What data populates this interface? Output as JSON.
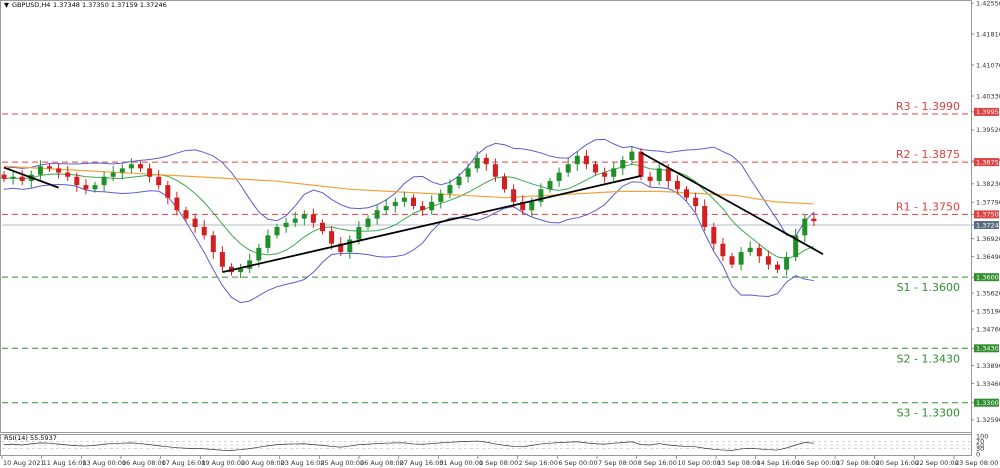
{
  "header": {
    "symbol": "GBPUSD,H4",
    "ohlc": "1.37348 1.37350 1.37159 1.37246"
  },
  "rsi_header": "RSI(14) 55.5937",
  "colors": {
    "bull": "#1f8f2a",
    "bear": "#d31f1f",
    "ma_fast": "#3aa84a",
    "ma_slow": "#f2a33a",
    "bands": "#5c5ccf",
    "resistance": "#e04040",
    "support": "#2f8f2f",
    "trend": "#000000"
  },
  "chart_data": [
    {
      "type": "candlestick",
      "title": "GBPUSD,H4",
      "ylim": [
        1.323,
        1.426
      ],
      "y_ticks": [
        "1.42550",
        "1.41810",
        "1.41070",
        "1.40330",
        "1.39950",
        "1.39520",
        "1.38780",
        "1.38750",
        "1.38230",
        "1.37790",
        "1.37500",
        "1.37246",
        "1.36920",
        "1.36490",
        "1.36000",
        "1.35620",
        "1.35190",
        "1.34760",
        "1.34300",
        "1.33890",
        "1.33460",
        "1.33000",
        "1.32590"
      ],
      "y_tick_values": [
        1.4255,
        1.4181,
        1.4107,
        1.4033,
        1.3995,
        1.3952,
        1.3878,
        1.3875,
        1.3823,
        1.3779,
        1.375,
        1.37246,
        1.3692,
        1.3649,
        1.36,
        1.3562,
        1.3519,
        1.3476,
        1.343,
        1.3389,
        1.3346,
        1.33,
        1.3259
      ],
      "highlighted_ticks": {
        "1.39950": "#e04040",
        "1.38750": "#e04040",
        "1.37500": "#e04040",
        "1.36000": "#2f8f2f",
        "1.34300": "#2f8f2f",
        "1.33000": "#2f8f2f"
      },
      "current_price_tick": "1.37246",
      "x_ticks": [
        "10 Aug 2021",
        "11 Aug 16:00",
        "13 Aug 00:00",
        "16 Aug 08:00",
        "17 Aug 16:00",
        "19 Aug 00:00",
        "20 Aug 08:00",
        "23 Aug 16:00",
        "25 Aug 00:00",
        "26 Aug 08:00",
        "27 Aug 16:00",
        "31 Aug 00:00",
        "1 Sep 08:00",
        "2 Sep 16:00",
        "6 Sep 00:00",
        "7 Sep 08:00",
        "8 Sep 16:00",
        "10 Sep 00:00",
        "13 Sep 08:00",
        "14 Sep 16:00",
        "16 Sep 00:00",
        "17 Sep 08:00",
        "20 Sep 16:00",
        "22 Sep 00:00",
        "23 Sep 08:00"
      ],
      "close_path": [
        1.3835,
        1.384,
        1.383,
        1.3845,
        1.3865,
        1.386,
        1.385,
        1.384,
        1.382,
        1.381,
        1.382,
        1.384,
        1.385,
        1.386,
        1.387,
        1.386,
        1.384,
        1.382,
        1.379,
        1.376,
        1.374,
        1.372,
        1.37,
        1.366,
        1.3625,
        1.3612,
        1.362,
        1.364,
        1.367,
        1.37,
        1.372,
        1.373,
        1.374,
        1.375,
        1.373,
        1.371,
        1.368,
        1.366,
        1.369,
        1.372,
        1.374,
        1.376,
        1.377,
        1.378,
        1.379,
        1.377,
        1.376,
        1.378,
        1.38,
        1.382,
        1.384,
        1.386,
        1.3885,
        1.387,
        1.384,
        1.381,
        1.378,
        1.376,
        1.378,
        1.381,
        1.383,
        1.385,
        1.387,
        1.389,
        1.387,
        1.385,
        1.384,
        1.386,
        1.388,
        1.39,
        1.384,
        1.383,
        1.386,
        1.383,
        1.381,
        1.379,
        1.377,
        1.372,
        1.368,
        1.365,
        1.363,
        1.366,
        1.367,
        1.365,
        1.363,
        1.3618,
        1.3648,
        1.37,
        1.374,
        1.3734
      ],
      "resistance_levels": [
        {
          "label": "R3 - 1.3990",
          "value": 1.399
        },
        {
          "label": "R2 - 1.3875",
          "value": 1.3875
        },
        {
          "label": "R1 - 1.3750",
          "value": 1.375
        }
      ],
      "support_levels": [
        {
          "label": "S1 - 1.3600",
          "value": 1.36
        },
        {
          "label": "S2 - 1.3430",
          "value": 1.343
        },
        {
          "label": "S3 - 1.3300",
          "value": 1.33
        }
      ],
      "ma_slow": [
        1.3865,
        1.386,
        1.3855,
        1.385,
        1.3845,
        1.384,
        1.3835,
        1.383,
        1.382,
        1.381,
        1.3805,
        1.38,
        1.3795,
        1.379,
        1.3795,
        1.38,
        1.3805,
        1.3805,
        1.38,
        1.3795,
        1.378,
        1.3775
      ],
      "trendlines": [
        {
          "from": [
            0,
            1.3862
          ],
          "to": [
            6,
            1.3814
          ]
        },
        {
          "from": [
            24,
            1.3612
          ],
          "to": [
            70,
            1.3842
          ]
        },
        {
          "from": [
            70,
            1.3898
          ],
          "to": [
            90,
            1.3655
          ]
        }
      ]
    },
    {
      "type": "line",
      "title": "RSI(14) 55.5937",
      "ylim": [
        0,
        100
      ],
      "y_ticks": [
        "100",
        "70",
        "50",
        "30",
        "0"
      ],
      "y_tick_values": [
        100,
        70,
        50,
        30,
        0
      ],
      "values": [
        52,
        55,
        50,
        57,
        62,
        60,
        55,
        50,
        46,
        44,
        48,
        55,
        58,
        60,
        62,
        58,
        52,
        46,
        40,
        35,
        32,
        30,
        29,
        25,
        21,
        20,
        24,
        30,
        38,
        46,
        52,
        55,
        56,
        57,
        52,
        48,
        42,
        38,
        44,
        52,
        55,
        58,
        60,
        62,
        62,
        56,
        54,
        58,
        62,
        65,
        68,
        70,
        72,
        66,
        56,
        48,
        42,
        40,
        48,
        56,
        60,
        63,
        66,
        68,
        62,
        57,
        55,
        60,
        64,
        68,
        52,
        50,
        58,
        50,
        45,
        42,
        40,
        32,
        26,
        22,
        20,
        28,
        32,
        28,
        24,
        22,
        34,
        50,
        64,
        60
      ]
    }
  ]
}
